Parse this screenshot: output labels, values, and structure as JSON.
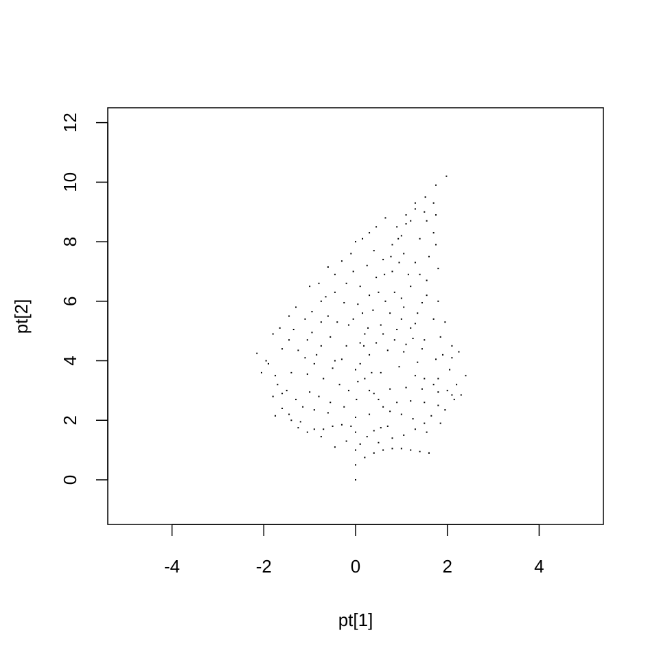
{
  "chart_data": {
    "type": "scatter",
    "title": "",
    "xlabel": "pt[1]",
    "ylabel": "pt[2]",
    "xlim": [
      -5.4,
      5.4
    ],
    "ylim": [
      -1.5,
      12.5
    ],
    "x_ticks": [
      "-4",
      "-2",
      "0",
      "2",
      "4"
    ],
    "y_ticks": [
      "0",
      "2",
      "4",
      "6",
      "8",
      "10",
      "12"
    ],
    "grid": false,
    "legend": "none",
    "point_color": "#000000",
    "series": [
      {
        "points": [
          [
            0.0,
            0.0
          ],
          [
            0.0,
            0.5
          ],
          [
            0.0,
            1.0
          ],
          [
            0.0,
            1.6
          ],
          [
            0.0,
            2.1
          ],
          [
            0.02,
            2.7
          ],
          [
            0.05,
            3.3
          ],
          [
            0.1,
            3.9
          ],
          [
            0.18,
            4.5
          ],
          [
            0.27,
            5.1
          ],
          [
            0.38,
            5.7
          ],
          [
            0.5,
            6.3
          ],
          [
            0.63,
            6.9
          ],
          [
            0.77,
            7.5
          ],
          [
            0.93,
            8.1
          ],
          [
            1.1,
            8.6
          ],
          [
            1.3,
            9.1
          ],
          [
            1.52,
            9.5
          ],
          [
            1.75,
            9.9
          ],
          [
            1.98,
            10.2
          ],
          [
            0.1,
            1.2
          ],
          [
            0.25,
            1.45
          ],
          [
            0.4,
            1.65
          ],
          [
            0.55,
            1.75
          ],
          [
            0.7,
            1.8
          ],
          [
            0.2,
            0.75
          ],
          [
            0.4,
            0.9
          ],
          [
            0.6,
            1.0
          ],
          [
            0.8,
            1.05
          ],
          [
            1.0,
            1.05
          ],
          [
            1.2,
            1.0
          ],
          [
            1.4,
            0.95
          ],
          [
            1.6,
            0.9
          ],
          [
            0.3,
            2.2
          ],
          [
            0.6,
            2.45
          ],
          [
            0.9,
            2.6
          ],
          [
            1.2,
            2.65
          ],
          [
            1.5,
            2.6
          ],
          [
            1.8,
            2.5
          ],
          [
            0.4,
            2.9
          ],
          [
            0.75,
            3.05
          ],
          [
            1.1,
            3.1
          ],
          [
            1.45,
            3.05
          ],
          [
            1.8,
            2.95
          ],
          [
            2.1,
            2.85
          ],
          [
            0.55,
            3.6
          ],
          [
            0.95,
            3.8
          ],
          [
            1.35,
            3.95
          ],
          [
            1.75,
            4.05
          ],
          [
            2.1,
            4.1
          ],
          [
            0.7,
            4.35
          ],
          [
            1.1,
            4.55
          ],
          [
            1.5,
            4.7
          ],
          [
            1.85,
            4.8
          ],
          [
            0.9,
            5.05
          ],
          [
            1.3,
            5.25
          ],
          [
            1.7,
            5.4
          ],
          [
            1.95,
            5.3
          ],
          [
            1.05,
            5.8
          ],
          [
            1.45,
            5.95
          ],
          [
            1.8,
            6.0
          ],
          [
            1.2,
            6.5
          ],
          [
            1.55,
            6.7
          ],
          [
            1.8,
            7.1
          ],
          [
            1.3,
            7.3
          ],
          [
            1.6,
            7.5
          ],
          [
            1.75,
            7.9
          ],
          [
            1.4,
            8.1
          ],
          [
            1.7,
            8.3
          ],
          [
            1.55,
            8.7
          ],
          [
            1.75,
            8.9
          ],
          [
            1.7,
            9.3
          ],
          [
            2.0,
            3.0
          ],
          [
            2.2,
            3.2
          ],
          [
            2.4,
            3.5
          ],
          [
            2.3,
            2.85
          ],
          [
            2.15,
            2.7
          ],
          [
            1.95,
            2.35
          ],
          [
            2.05,
            3.7
          ],
          [
            2.25,
            4.3
          ],
          [
            2.1,
            4.5
          ],
          [
            1.9,
            4.2
          ],
          [
            1.8,
            3.4
          ],
          [
            -0.1,
            1.8
          ],
          [
            -0.3,
            1.85
          ],
          [
            -0.5,
            1.8
          ],
          [
            -0.7,
            1.7
          ],
          [
            -0.9,
            1.7
          ],
          [
            -0.25,
            2.45
          ],
          [
            -0.55,
            2.6
          ],
          [
            -0.8,
            2.8
          ],
          [
            -1.0,
            2.95
          ],
          [
            -1.2,
            1.95
          ],
          [
            -1.4,
            2.0
          ],
          [
            -1.6,
            2.4
          ],
          [
            -1.8,
            2.8
          ],
          [
            -0.35,
            3.2
          ],
          [
            -0.7,
            3.4
          ],
          [
            -1.05,
            3.55
          ],
          [
            -1.4,
            3.6
          ],
          [
            -1.75,
            3.5
          ],
          [
            -2.05,
            3.6
          ],
          [
            -0.45,
            4.0
          ],
          [
            -0.85,
            4.2
          ],
          [
            -1.25,
            4.35
          ],
          [
            -1.6,
            4.4
          ],
          [
            -1.95,
            4.0
          ],
          [
            -2.15,
            4.25
          ],
          [
            -0.55,
            4.8
          ],
          [
            -0.95,
            4.95
          ],
          [
            -1.35,
            5.05
          ],
          [
            -1.65,
            5.1
          ],
          [
            -1.8,
            4.9
          ],
          [
            -0.6,
            5.5
          ],
          [
            -0.95,
            5.65
          ],
          [
            -1.3,
            5.8
          ],
          [
            -0.65,
            6.15
          ],
          [
            -1.0,
            6.5
          ],
          [
            -0.8,
            6.6
          ],
          [
            -0.45,
            6.9
          ],
          [
            -0.6,
            7.15
          ],
          [
            -0.3,
            7.35
          ],
          [
            -0.1,
            7.6
          ],
          [
            0.0,
            8.0
          ],
          [
            0.15,
            8.1
          ],
          [
            0.3,
            8.3
          ],
          [
            0.45,
            8.5
          ],
          [
            0.65,
            8.8
          ],
          [
            -1.5,
            3.0
          ],
          [
            -1.3,
            2.7
          ],
          [
            -1.6,
            2.9
          ],
          [
            -1.7,
            3.2
          ],
          [
            -1.9,
            3.9
          ],
          [
            -0.9,
            3.9
          ],
          [
            -1.1,
            4.1
          ],
          [
            -0.3,
            4.05
          ],
          [
            -0.2,
            4.5
          ],
          [
            -0.15,
            5.2
          ],
          [
            0.2,
            3.4
          ],
          [
            0.35,
            3.6
          ],
          [
            0.3,
            4.2
          ],
          [
            0.2,
            4.9
          ],
          [
            0.15,
            5.6
          ],
          [
            0.3,
            6.2
          ],
          [
            0.45,
            6.8
          ],
          [
            0.25,
            7.2
          ],
          [
            0.4,
            7.7
          ],
          [
            0.6,
            7.4
          ],
          [
            0.8,
            7.0
          ],
          [
            0.95,
            7.3
          ],
          [
            0.8,
            7.9
          ],
          [
            1.0,
            8.2
          ],
          [
            0.9,
            8.5
          ],
          [
            1.1,
            8.9
          ],
          [
            1.3,
            9.3
          ],
          [
            1.5,
            9.0
          ],
          [
            1.2,
            8.7
          ],
          [
            0.65,
            6.0
          ],
          [
            0.85,
            6.3
          ],
          [
            1.0,
            6.1
          ],
          [
            1.15,
            6.9
          ],
          [
            1.05,
            7.6
          ],
          [
            1.4,
            6.9
          ],
          [
            0.55,
            5.2
          ],
          [
            0.75,
            5.6
          ],
          [
            1.0,
            5.4
          ],
          [
            1.2,
            5.1
          ],
          [
            1.35,
            5.6
          ],
          [
            1.55,
            6.2
          ],
          [
            0.45,
            4.6
          ],
          [
            0.6,
            4.9
          ],
          [
            0.85,
            4.7
          ],
          [
            1.05,
            4.3
          ],
          [
            1.25,
            4.75
          ],
          [
            1.45,
            4.4
          ],
          [
            0.3,
            3.0
          ],
          [
            0.5,
            2.7
          ],
          [
            0.75,
            2.3
          ],
          [
            1.0,
            2.2
          ],
          [
            1.25,
            2.05
          ],
          [
            1.5,
            1.9
          ],
          [
            1.05,
            1.5
          ],
          [
            1.3,
            1.7
          ],
          [
            1.55,
            1.6
          ],
          [
            0.8,
            1.4
          ],
          [
            0.5,
            1.25
          ],
          [
            1.65,
            2.15
          ],
          [
            1.85,
            1.9
          ],
          [
            1.7,
            3.2
          ],
          [
            1.5,
            3.4
          ],
          [
            1.3,
            3.5
          ],
          [
            -0.2,
            1.3
          ],
          [
            -0.45,
            1.1
          ],
          [
            -0.75,
            1.45
          ],
          [
            -1.05,
            1.6
          ],
          [
            -1.25,
            1.75
          ],
          [
            -0.6,
            2.25
          ],
          [
            -0.9,
            2.35
          ],
          [
            -1.15,
            2.45
          ],
          [
            -1.45,
            2.2
          ],
          [
            -1.75,
            2.15
          ],
          [
            -0.15,
            3.0
          ],
          [
            -0.5,
            3.75
          ],
          [
            -0.75,
            4.5
          ],
          [
            -1.05,
            4.7
          ],
          [
            -1.45,
            4.7
          ],
          [
            -0.4,
            5.3
          ],
          [
            -0.75,
            5.3
          ],
          [
            -1.1,
            5.4
          ],
          [
            -1.45,
            5.5
          ],
          [
            -0.25,
            5.95
          ],
          [
            -0.45,
            6.3
          ],
          [
            -0.75,
            6.0
          ],
          [
            -0.2,
            6.6
          ],
          [
            -0.05,
            7.0
          ],
          [
            0.1,
            6.5
          ],
          [
            0.05,
            5.9
          ],
          [
            -0.05,
            5.4
          ],
          [
            0.1,
            4.6
          ],
          [
            0.0,
            3.7
          ]
        ]
      }
    ]
  }
}
